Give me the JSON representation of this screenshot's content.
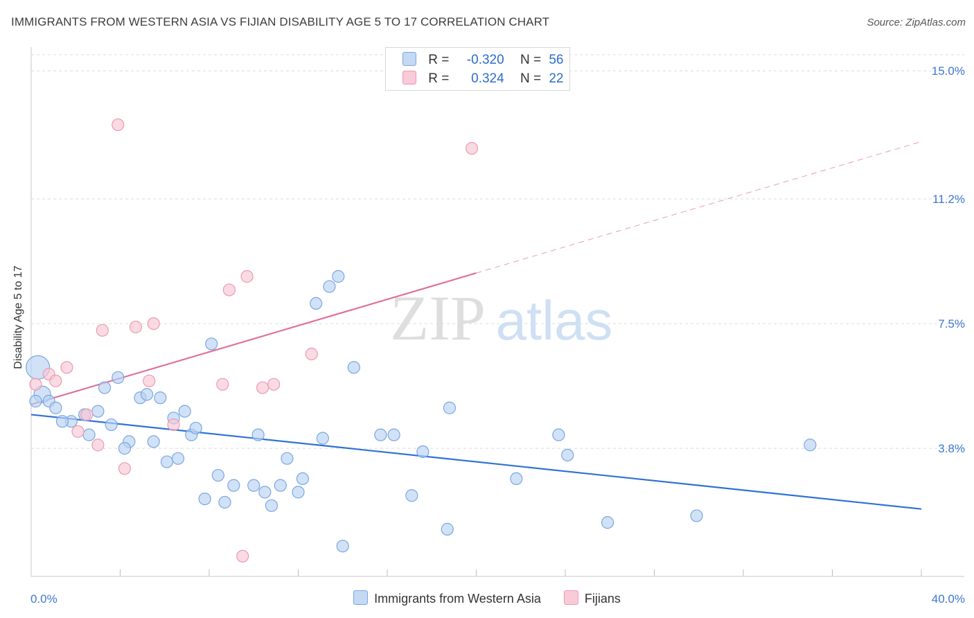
{
  "title": "IMMIGRANTS FROM WESTERN ASIA VS FIJIAN DISABILITY AGE 5 TO 17 CORRELATION CHART",
  "source": "Source: ZipAtlas.com",
  "watermark": {
    "zip": "ZIP",
    "atlas": "atlas"
  },
  "legend": {
    "rows": [
      {
        "r_label": "R =",
        "r_value": "-0.320",
        "n_label": "N =",
        "n_value": "56",
        "color": "#a9c8f0"
      },
      {
        "r_label": "R =",
        "r_value": "0.324",
        "n_label": "N =",
        "n_value": "22",
        "color": "#f6b8cb"
      }
    ]
  },
  "chart_data": {
    "type": "scatter",
    "title": "IMMIGRANTS FROM WESTERN ASIA VS FIJIAN DISABILITY AGE 5 TO 17 CORRELATION CHART",
    "xlabel": "",
    "ylabel": "Disability Age 5 to 17",
    "xlim": [
      0,
      40
    ],
    "ylim": [
      0,
      15.6
    ],
    "x_tick_labels": [
      "0.0%",
      "40.0%"
    ],
    "y_ticks": [
      3.8,
      7.5,
      11.2,
      15.0
    ],
    "y_tick_labels": [
      "3.8%",
      "7.5%",
      "11.2%",
      "15.0%"
    ],
    "grid": "horizontal-dashed",
    "legend_position": "bottom-center",
    "colors": {
      "blue_fill": "#b9d2f2",
      "blue_stroke": "#7aa6e0",
      "blue_line": "#2f72d3",
      "pink_fill": "#f8c6d4",
      "pink_stroke": "#ee98b2",
      "pink_line": "#e0719a"
    },
    "series": [
      {
        "name": "Immigrants from Western Asia",
        "color": "#7aa6e0",
        "points": [
          [
            0.3,
            6.2
          ],
          [
            0.5,
            5.4
          ],
          [
            0.8,
            5.2
          ],
          [
            1.1,
            5.0
          ],
          [
            1.8,
            4.6
          ],
          [
            1.4,
            4.6
          ],
          [
            2.4,
            4.8
          ],
          [
            3.0,
            4.9
          ],
          [
            2.6,
            4.2
          ],
          [
            3.3,
            5.6
          ],
          [
            3.6,
            4.5
          ],
          [
            3.9,
            5.9
          ],
          [
            4.4,
            4.0
          ],
          [
            4.2,
            3.8
          ],
          [
            4.9,
            5.3
          ],
          [
            5.2,
            5.4
          ],
          [
            5.5,
            4.0
          ],
          [
            5.8,
            5.3
          ],
          [
            6.1,
            3.4
          ],
          [
            6.4,
            4.7
          ],
          [
            6.6,
            3.5
          ],
          [
            6.9,
            4.9
          ],
          [
            7.2,
            4.2
          ],
          [
            7.4,
            4.4
          ],
          [
            7.8,
            2.3
          ],
          [
            8.1,
            6.9
          ],
          [
            8.4,
            3.0
          ],
          [
            8.7,
            2.2
          ],
          [
            9.1,
            2.7
          ],
          [
            10.0,
            2.7
          ],
          [
            10.2,
            4.2
          ],
          [
            10.5,
            2.5
          ],
          [
            10.8,
            2.1
          ],
          [
            11.2,
            2.7
          ],
          [
            11.5,
            3.5
          ],
          [
            12.0,
            2.5
          ],
          [
            12.2,
            2.9
          ],
          [
            12.8,
            8.1
          ],
          [
            13.1,
            4.1
          ],
          [
            13.4,
            8.6
          ],
          [
            13.8,
            8.9
          ],
          [
            14.0,
            0.9
          ],
          [
            14.5,
            6.2
          ],
          [
            15.7,
            4.2
          ],
          [
            16.3,
            4.2
          ],
          [
            17.1,
            2.4
          ],
          [
            17.6,
            3.7
          ],
          [
            18.7,
            1.4
          ],
          [
            18.8,
            5.0
          ],
          [
            21.8,
            2.9
          ],
          [
            23.7,
            4.2
          ],
          [
            24.1,
            3.6
          ],
          [
            25.9,
            1.6
          ],
          [
            29.9,
            1.8
          ],
          [
            35.0,
            3.9
          ],
          [
            0.2,
            5.2
          ]
        ],
        "trend": {
          "x": [
            0,
            40
          ],
          "y": [
            4.8,
            2.0
          ],
          "style": "solid"
        }
      },
      {
        "name": "Fijians",
        "color": "#ee98b2",
        "points": [
          [
            0.2,
            5.7
          ],
          [
            0.8,
            6.0
          ],
          [
            1.1,
            5.8
          ],
          [
            1.6,
            6.2
          ],
          [
            2.1,
            4.3
          ],
          [
            2.5,
            4.8
          ],
          [
            3.0,
            3.9
          ],
          [
            3.2,
            7.3
          ],
          [
            3.9,
            13.4
          ],
          [
            4.2,
            3.2
          ],
          [
            4.7,
            7.4
          ],
          [
            5.3,
            5.8
          ],
          [
            5.5,
            7.5
          ],
          [
            6.4,
            4.5
          ],
          [
            8.6,
            5.7
          ],
          [
            8.9,
            8.5
          ],
          [
            9.5,
            0.6
          ],
          [
            9.7,
            8.9
          ],
          [
            10.4,
            5.6
          ],
          [
            10.9,
            5.7
          ],
          [
            12.6,
            6.6
          ],
          [
            19.8,
            12.7
          ]
        ],
        "trend": {
          "x": [
            0,
            20
          ],
          "y": [
            5.1,
            9.0
          ],
          "style": "solid",
          "extended": {
            "x": [
              20,
              40
            ],
            "y": [
              9.0,
              12.9
            ],
            "style": "dashed"
          }
        }
      }
    ]
  }
}
